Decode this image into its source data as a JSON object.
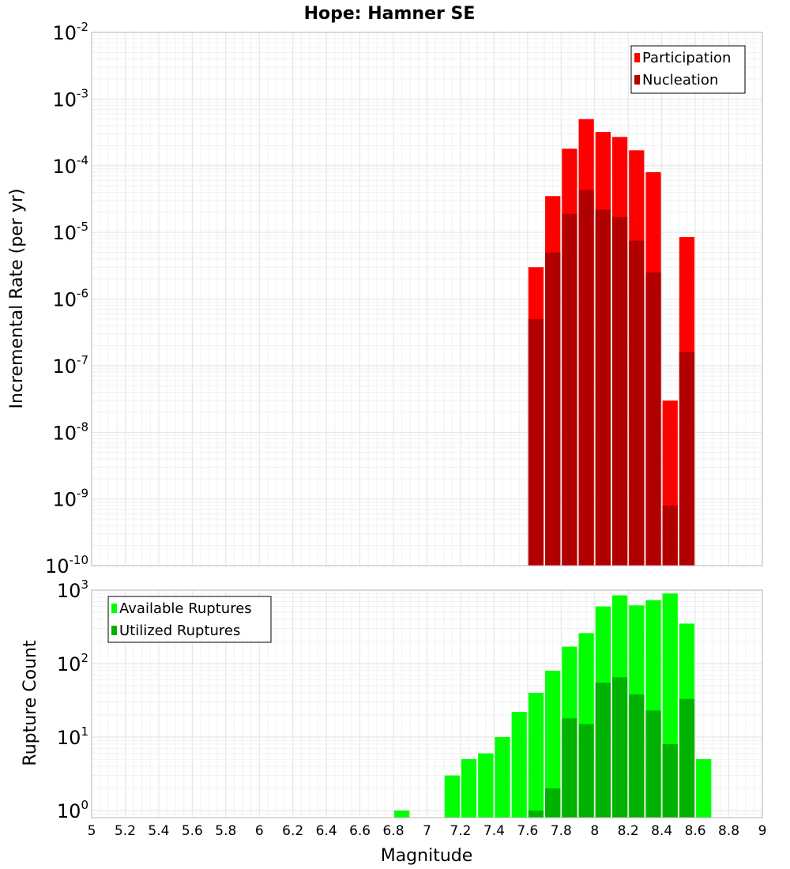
{
  "chart_data": [
    {
      "type": "bar",
      "title": "Hope: Hamner SE",
      "xlabel": "",
      "ylabel": "Incremental Rate (per yr)",
      "yscale": "log",
      "ylim": [
        1e-10,
        0.01
      ],
      "xlim": [
        5,
        9
      ],
      "bar_width": 0.1,
      "grid": true,
      "legend_position": "top-right",
      "series": [
        {
          "name": "Participation",
          "color": "#ff0000",
          "x": [
            7.65,
            7.75,
            7.85,
            7.95,
            8.05,
            8.15,
            8.25,
            8.35,
            8.45,
            8.55
          ],
          "values": [
            3e-06,
            3.5e-05,
            0.00018,
            0.0005,
            0.00032,
            0.00027,
            0.00017,
            8e-05,
            3e-08,
            8.5e-06
          ]
        },
        {
          "name": "Nucleation",
          "color": "#b20000",
          "x": [
            7.65,
            7.75,
            7.85,
            7.95,
            8.05,
            8.15,
            8.25,
            8.35,
            8.45,
            8.55
          ],
          "values": [
            5e-07,
            5e-06,
            1.9e-05,
            4.3e-05,
            2.2e-05,
            1.7e-05,
            7.5e-06,
            2.5e-06,
            8e-10,
            1.6e-07
          ]
        }
      ]
    },
    {
      "type": "bar",
      "title": "",
      "xlabel": "Magnitude",
      "ylabel": "Rupture Count",
      "yscale": "log",
      "ylim": [
        0.8,
        1000
      ],
      "xlim": [
        5,
        9
      ],
      "bar_width": 0.1,
      "grid": true,
      "legend_position": "top-left",
      "xticks": [
        "5",
        "5.2",
        "5.4",
        "5.6",
        "5.8",
        "6",
        "6.2",
        "6.4",
        "6.6",
        "6.8",
        "7",
        "7.2",
        "7.4",
        "7.6",
        "7.8",
        "8",
        "8.2",
        "8.4",
        "8.6",
        "8.8",
        "9"
      ],
      "series": [
        {
          "name": "Available Ruptures",
          "color": "#00ff00",
          "x": [
            6.85,
            7.15,
            7.25,
            7.35,
            7.45,
            7.55,
            7.65,
            7.75,
            7.85,
            7.95,
            8.05,
            8.15,
            8.25,
            8.35,
            8.45,
            8.55,
            8.65
          ],
          "values": [
            1,
            3,
            5,
            6,
            10,
            22,
            40,
            80,
            170,
            260,
            600,
            850,
            620,
            730,
            900,
            350,
            5
          ]
        },
        {
          "name": "Utilized Ruptures",
          "color": "#00b200",
          "x": [
            7.65,
            7.75,
            7.85,
            7.95,
            8.05,
            8.15,
            8.25,
            8.35,
            8.45,
            8.55
          ],
          "values": [
            1,
            2,
            18,
            15,
            55,
            65,
            38,
            23,
            8,
            33
          ]
        }
      ]
    }
  ]
}
